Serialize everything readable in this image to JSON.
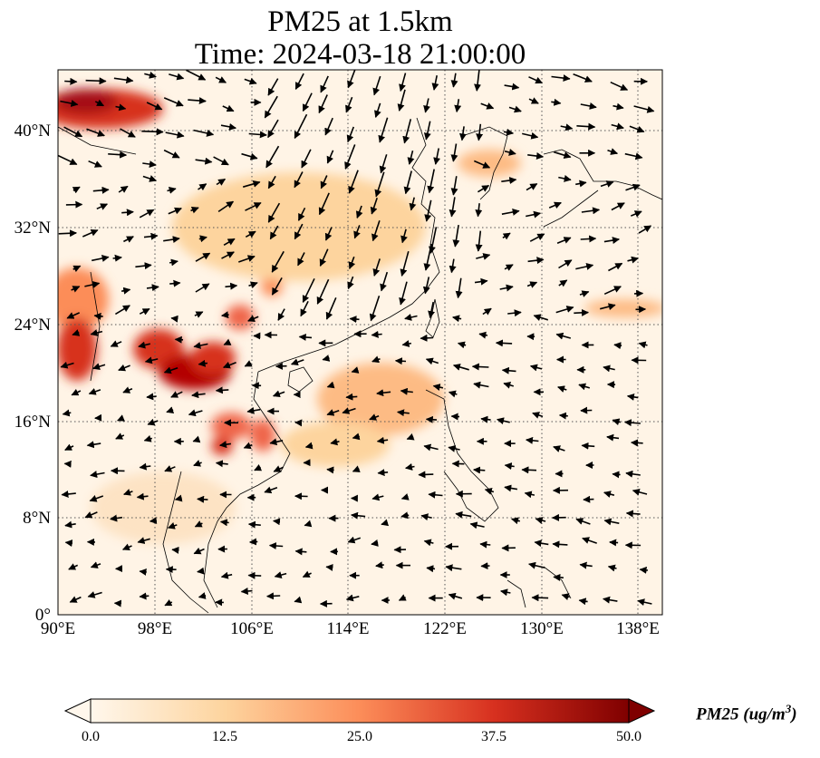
{
  "title": {
    "line1": "PM25 at 1.5km",
    "line2": "Time: 2024-03-18 21:00:00"
  },
  "map": {
    "lon_range": [
      90,
      140
    ],
    "lat_range": [
      0,
      45
    ],
    "lon_ticks": [
      "90°E",
      "98°E",
      "106°E",
      "114°E",
      "122°E",
      "130°E",
      "138°E"
    ],
    "lat_ticks": [
      "0°",
      "8°N",
      "16°N",
      "24°N",
      "32°N",
      "40°N"
    ],
    "gridlines": "dotted",
    "field": "PM25",
    "overlay": "wind vectors (arrows)"
  },
  "colorbar": {
    "label_prefix": "PM25 (ug/m",
    "label_sup": "3",
    "label_suffix": ")",
    "ticks": [
      "0.0",
      "12.5",
      "25.0",
      "37.5",
      "50.0"
    ],
    "range": [
      0,
      50
    ],
    "extend": "both",
    "colormap": "OrRd",
    "colors": [
      "#fff7ec",
      "#fdd49e",
      "#fc8d59",
      "#d7301f",
      "#7f0000"
    ]
  }
}
